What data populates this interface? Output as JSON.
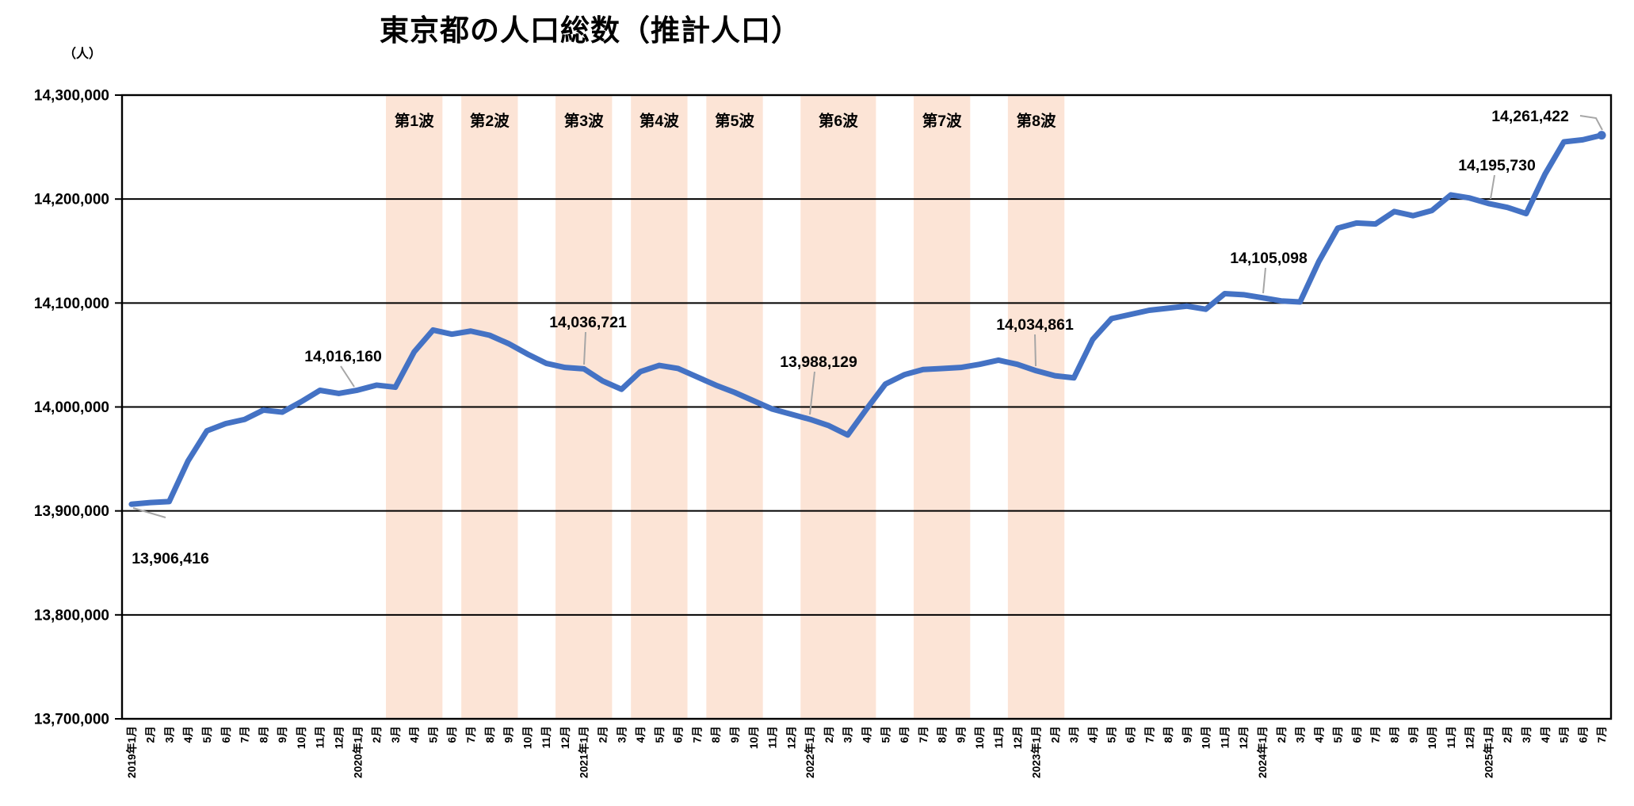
{
  "title": "東京都の人口総数（推計人口）",
  "y_axis": {
    "unit_label": "（人）",
    "ticks": [
      "14,300,000",
      "14,200,000",
      "14,100,000",
      "14,000,000",
      "13,900,000",
      "13,800,000",
      "13,700,000"
    ],
    "tick_values": [
      14300000,
      14200000,
      14100000,
      14000000,
      13900000,
      13800000,
      13700000
    ]
  },
  "waves": [
    {
      "label": "第1波",
      "range": [
        14,
        16
      ],
      "period": "2020年3月-5月"
    },
    {
      "label": "第2波",
      "range": [
        18,
        20
      ],
      "period": "2020年7月-9月"
    },
    {
      "label": "第3波",
      "range": [
        23,
        25
      ],
      "period": "2020年12月-2021年2月"
    },
    {
      "label": "第4波",
      "range": [
        27,
        29
      ],
      "period": "2021年4月-6月"
    },
    {
      "label": "第5波",
      "range": [
        31,
        33
      ],
      "period": "2021年8月-10月"
    },
    {
      "label": "第6波",
      "range": [
        36,
        39
      ],
      "period": "2022年1月-4月"
    },
    {
      "label": "第7波",
      "range": [
        42,
        44
      ],
      "period": "2022年7月-9月"
    },
    {
      "label": "第8波",
      "range": [
        47,
        49
      ],
      "period": "2022年12月-2023年2月"
    }
  ],
  "annotations": [
    {
      "text": "13,906,416",
      "month": "2019年1月",
      "month_index": 0,
      "value": 13906416
    },
    {
      "text": "14,016,160",
      "month": "2020年1月",
      "month_index": 12,
      "value": 14016160
    },
    {
      "text": "14,036,721",
      "month": "2021年1月",
      "month_index": 24,
      "value": 14036721
    },
    {
      "text": "13,988,129",
      "month": "2022年1月",
      "month_index": 36,
      "value": 13988129
    },
    {
      "text": "14,034,861",
      "month": "2023年1月",
      "month_index": 48,
      "value": 14034861
    },
    {
      "text": "14,105,098",
      "month": "2024年1月",
      "month_index": 60,
      "value": 14105098
    },
    {
      "text": "14,195,730",
      "month": "2025年1月",
      "month_index": 72,
      "value": 14195730
    },
    {
      "text": "14,261,422",
      "month": "2025年7月",
      "month_index": 78,
      "value": 14261422
    }
  ],
  "colors": {
    "line": "#4472C4",
    "wave_band": "#FCE4D6",
    "leader": "#A6A6A6",
    "grid": "#000000",
    "text": "#000000",
    "background": "#FFFFFF"
  },
  "chart_data": {
    "type": "line",
    "title": "東京都の人口総数（推計人口）",
    "ylabel": "（人）",
    "ylim": [
      13700000,
      14300000
    ],
    "grid": true,
    "categories": [
      "2019年1月",
      "2月",
      "3月",
      "4月",
      "5月",
      "6月",
      "7月",
      "8月",
      "9月",
      "10月",
      "11月",
      "12月",
      "2020年1月",
      "2月",
      "3月",
      "4月",
      "5月",
      "6月",
      "7月",
      "8月",
      "9月",
      "10月",
      "11月",
      "12月",
      "2021年1月",
      "2月",
      "3月",
      "4月",
      "5月",
      "6月",
      "7月",
      "8月",
      "9月",
      "10月",
      "11月",
      "12月",
      "2022年1月",
      "2月",
      "3月",
      "4月",
      "5月",
      "6月",
      "7月",
      "8月",
      "9月",
      "10月",
      "11月",
      "12月",
      "2023年1月",
      "2月",
      "3月",
      "4月",
      "5月",
      "6月",
      "7月",
      "8月",
      "9月",
      "10月",
      "11月",
      "12月",
      "2024年1月",
      "2月",
      "3月",
      "4月",
      "5月",
      "6月",
      "7月",
      "8月",
      "9月",
      "10月",
      "11月",
      "12月",
      "2025年1月",
      "2月",
      "3月",
      "4月",
      "5月",
      "6月",
      "7月"
    ],
    "series": [
      {
        "name": "人口総数",
        "values": [
          13906416,
          13908000,
          13909000,
          13948000,
          13977000,
          13984000,
          13988000,
          13997000,
          13995000,
          14005000,
          14016000,
          14013000,
          14016160,
          14021000,
          14019000,
          14053000,
          14074000,
          14070000,
          14073000,
          14069000,
          14061000,
          14051000,
          14042000,
          14038000,
          14036721,
          14025000,
          14017000,
          14034000,
          14040000,
          14037000,
          14029000,
          14021000,
          14014000,
          14006000,
          13998000,
          13993000,
          13988129,
          13982000,
          13973000,
          13998000,
          14022000,
          14031000,
          14036000,
          14037000,
          14038000,
          14041000,
          14045000,
          14041000,
          14034861,
          14030000,
          14028000,
          14065000,
          14085000,
          14089000,
          14093000,
          14095000,
          14097000,
          14094000,
          14109000,
          14108000,
          14105098,
          14102000,
          14101000,
          14140000,
          14172000,
          14177000,
          14176000,
          14188000,
          14184000,
          14189000,
          14204000,
          14201000,
          14195730,
          14192000,
          14186000,
          14224000,
          14255000,
          14257000,
          14261422
        ]
      }
    ]
  }
}
